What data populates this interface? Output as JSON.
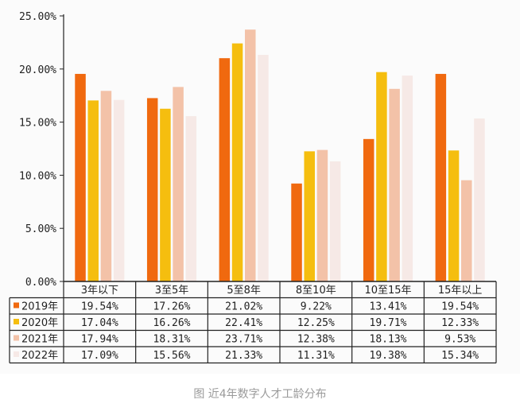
{
  "caption": "图 近4年数字人才工龄分布",
  "chart_data": {
    "type": "bar",
    "title": "",
    "xlabel": "",
    "ylabel": "",
    "ylim": [
      0,
      25
    ],
    "y_ticks": [
      "0.00%",
      "5.00%",
      "10.00%",
      "15.00%",
      "20.00%",
      "25.00%"
    ],
    "categories": [
      "3年以下",
      "3至5年",
      "5至8年",
      "8至10年",
      "10至15年",
      "15年以上"
    ],
    "series": [
      {
        "name": "2019年",
        "color": "#f0690f",
        "values": [
          19.54,
          17.26,
          21.02,
          9.22,
          13.41,
          19.54
        ],
        "labels": [
          "19.54%",
          "17.26%",
          "21.02%",
          "9.22%",
          "13.41%",
          "19.54%"
        ]
      },
      {
        "name": "2020年",
        "color": "#f5be0f",
        "values": [
          17.04,
          16.26,
          22.41,
          12.25,
          19.71,
          12.33
        ],
        "labels": [
          "17.04%",
          "16.26%",
          "22.41%",
          "12.25%",
          "19.71%",
          "12.33%"
        ]
      },
      {
        "name": "2021年",
        "color": "#f3c2a8",
        "values": [
          17.94,
          18.31,
          23.71,
          12.38,
          18.13,
          9.53
        ],
        "labels": [
          "17.94%",
          "18.31%",
          "23.71%",
          "12.38%",
          "18.13%",
          "9.53%"
        ]
      },
      {
        "name": "2022年",
        "color": "#f6e9e6",
        "values": [
          17.09,
          15.56,
          21.33,
          11.31,
          19.38,
          15.34
        ],
        "labels": [
          "17.09%",
          "15.56%",
          "21.33%",
          "11.31%",
          "19.38%",
          "15.34%"
        ]
      }
    ],
    "grid": false,
    "legend": "data-table-left"
  }
}
